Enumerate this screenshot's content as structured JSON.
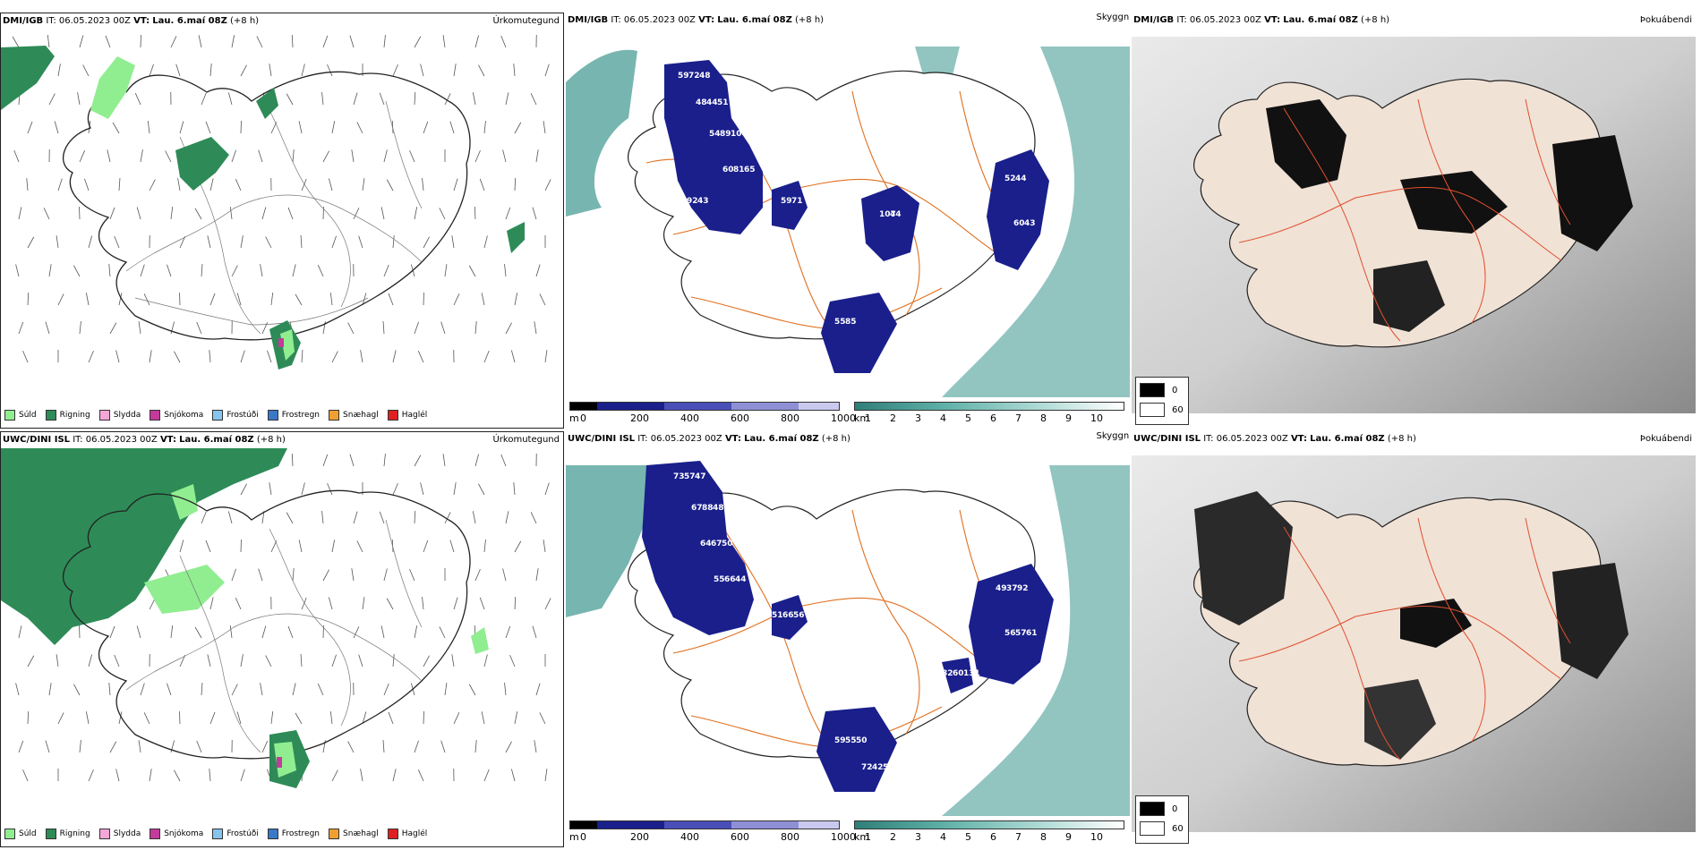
{
  "panels": {
    "tl": {
      "model": "DMI/IGB",
      "it_label": "IT:",
      "it": "06.05.2023 00Z",
      "vt_label": "VT:",
      "vt": "Lau. 6.maí 08Z",
      "lead": "(+8 h)",
      "product": "Úrkomutegund"
    },
    "tm": {
      "model": "DMI/IGB",
      "it_label": "IT:",
      "it": "06.05.2023 00Z",
      "vt_label": "VT:",
      "vt": "Lau. 6.maí 08Z",
      "lead": "(+8 h)",
      "product": "Skyggni"
    },
    "tr": {
      "model": "DMI/IGB",
      "it_label": "IT:",
      "it": "06.05.2023 00Z",
      "vt_label": "VT:",
      "vt": "Lau. 6.maí 08Z",
      "lead": "(+8 h)",
      "product": "Þokuábendi"
    },
    "bl": {
      "model": "UWC/DINI ISL",
      "it_label": "IT:",
      "it": "06.05.2023 00Z",
      "vt_label": "VT:",
      "vt": "Lau. 6.maí 08Z",
      "lead": "(+8 h)",
      "product": "Úrkomutegund"
    },
    "bm": {
      "model": "UWC/DINI ISL",
      "it_label": "IT:",
      "it": "06.05.2023 00Z",
      "vt_label": "VT:",
      "vt": "Lau. 6.maí 08Z",
      "lead": "(+8 h)",
      "product": "Skyggni"
    },
    "br": {
      "model": "UWC/DINI ISL",
      "it_label": "IT:",
      "it": "06.05.2023 00Z",
      "vt_label": "VT:",
      "vt": "Lau. 6.maí 08Z",
      "lead": "(+8 h)",
      "product": "Þokuábendi"
    }
  },
  "precip_legend": [
    {
      "label": "Súld",
      "color": "#90ee90"
    },
    {
      "label": "Rigning",
      "color": "#2e8b57"
    },
    {
      "label": "Slydda",
      "color": "#f4a6d7"
    },
    {
      "label": "Snjókoma",
      "color": "#c23b9a"
    },
    {
      "label": "Frostúði",
      "color": "#87c4ee"
    },
    {
      "label": "Frostregn",
      "color": "#3a78c8"
    },
    {
      "label": "Snæhagl",
      "color": "#f0a030"
    },
    {
      "label": "Haglél",
      "color": "#e02020"
    }
  ],
  "vis_colorbar": {
    "m_unit": "m",
    "m_ticks": [
      "0",
      "200",
      "400",
      "600",
      "800",
      "1000"
    ],
    "km_unit": "km",
    "km_ticks": [
      "1",
      "2",
      "3",
      "4",
      "5",
      "6",
      "7",
      "8",
      "9",
      "10"
    ]
  },
  "fog_legend": {
    "low": "0",
    "high": "60"
  },
  "vis_labels_top": [
    "59",
    "48",
    "54",
    "60",
    "59",
    "55",
    "107",
    "52",
    "60",
    "92",
    "72",
    "44",
    "89",
    "81",
    "71",
    "85",
    "44",
    "44",
    "43",
    "43",
    "48",
    "51",
    "104",
    "65"
  ],
  "vis_labels_bottom": [
    "73",
    "67",
    "64",
    "55",
    "51",
    "59",
    "72",
    "49",
    "56",
    "82",
    "57",
    "88",
    "67",
    "66",
    "66",
    "55",
    "42",
    "37",
    "57",
    "60",
    "47",
    "48",
    "50",
    "44",
    "56",
    "50",
    "54",
    "92",
    "61",
    "131"
  ],
  "colors": {
    "rain": "#2e8b57",
    "drizzle": "#90ee90",
    "vis_dark": "#1a1f8c",
    "vis_sea": "#4a9e96",
    "roads": "#e07020",
    "land_fog": "#f1e2d6"
  }
}
